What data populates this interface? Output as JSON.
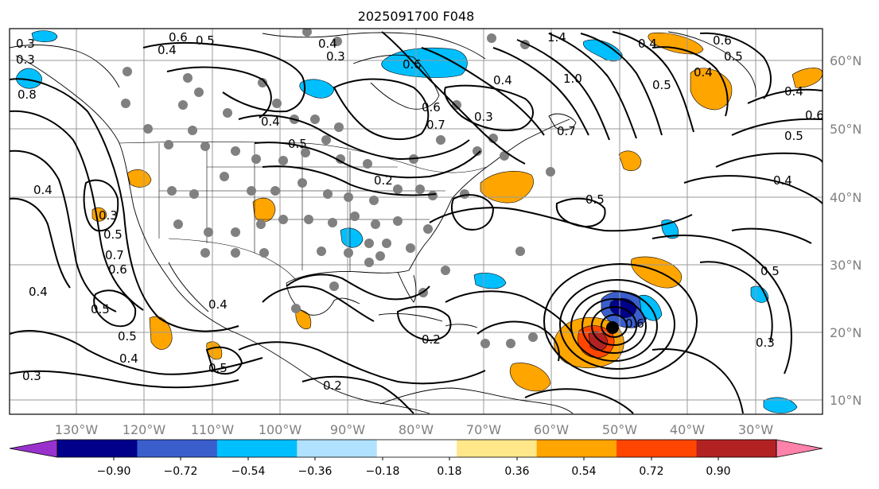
{
  "title": "2025091700 F048",
  "map": {
    "lon_ticks": [
      "130°W",
      "120°W",
      "110°W",
      "100°W",
      "90°W",
      "80°W",
      "70°W",
      "60°W",
      "50°W",
      "40°W",
      "30°W"
    ],
    "lat_ticks": [
      "60°N",
      "50°N",
      "40°N",
      "30°N",
      "20°N",
      "10°N"
    ],
    "grid": true,
    "fill_field": "diverging shaded anomaly, ±0.18 to ±0.90",
    "contour_field": "black line contours",
    "marker": "black dot (storm center)",
    "station_marker": "grey dots"
  },
  "contour_labels": [
    "0.6",
    "0.5",
    "0.4",
    "0.3",
    "0.3",
    "0.8",
    "0.4",
    "0.5",
    "0.6",
    "0.7",
    "0.2",
    "0.3",
    "0.4",
    "0.7",
    "0.6",
    "0.4",
    "1.4",
    "1.0",
    "0.3",
    "0.6",
    "0.5",
    "0.4",
    "0.5",
    "0.6",
    "0.5",
    "0.4",
    "0.4",
    "0.4",
    "0.6",
    "0.7",
    "0.5",
    "0.4",
    "0.5",
    "0.4",
    "0.3",
    "0.5",
    "0.2",
    "0.5",
    "0.3",
    "0.2",
    "0.4",
    "0.5",
    "0.3",
    "0.6",
    "0.4",
    "0.5"
  ],
  "colorbar": {
    "ticks": [
      "−0.90",
      "−0.72",
      "−0.54",
      "−0.36",
      "−0.18",
      "0.18",
      "0.36",
      "0.54",
      "0.72",
      "0.90"
    ],
    "colors": [
      "#9932cc",
      "#00008b",
      "#3a5fcd",
      "#00bfff",
      "#b0e2ff",
      "#ffffff",
      "#ffe78a",
      "#ffa500",
      "#ff4500",
      "#b22222",
      "#ff82ab"
    ]
  }
}
